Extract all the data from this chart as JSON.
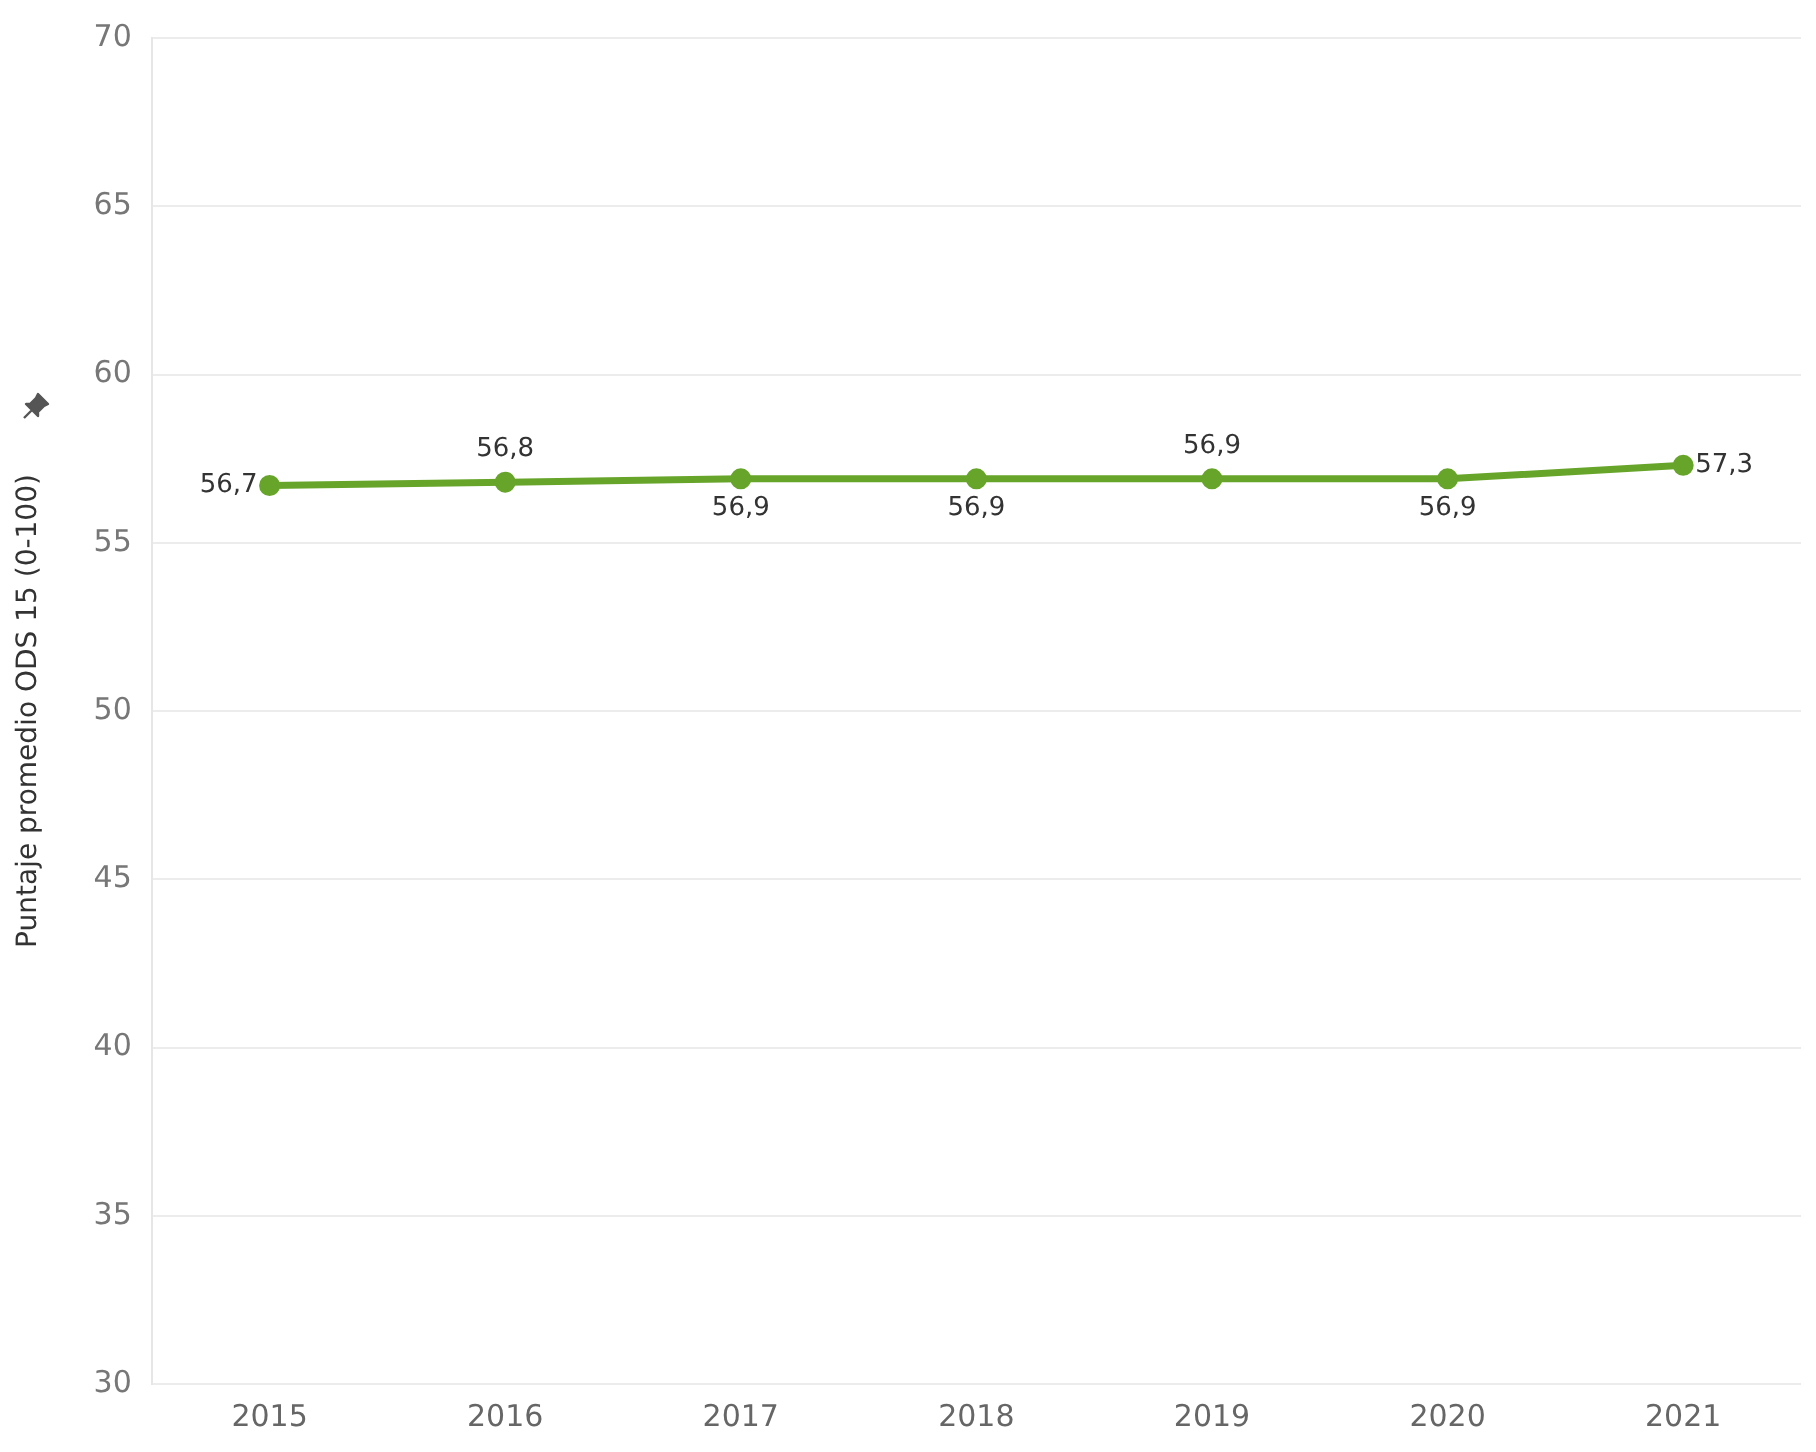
{
  "chart_data": {
    "type": "line",
    "ylabel": "Puntaje promedio ODS 15 (0-100)",
    "categories": [
      "2015",
      "2016",
      "2017",
      "2018",
      "2019",
      "2020",
      "2021"
    ],
    "series": [
      {
        "color": "#67a52a",
        "values": [
          56.7,
          56.8,
          56.9,
          56.9,
          56.9,
          56.9,
          57.3
        ],
        "value_labels": [
          "56,7",
          "56,8",
          "56,9",
          "56,9",
          "56,9",
          "56,9",
          "57,3"
        ]
      }
    ],
    "ylim": [
      30,
      70
    ],
    "yticks": [
      30,
      35,
      40,
      45,
      50,
      55,
      60,
      65,
      70
    ],
    "grid": "y",
    "legend": false,
    "marker": "circle",
    "line_style": "solid"
  }
}
